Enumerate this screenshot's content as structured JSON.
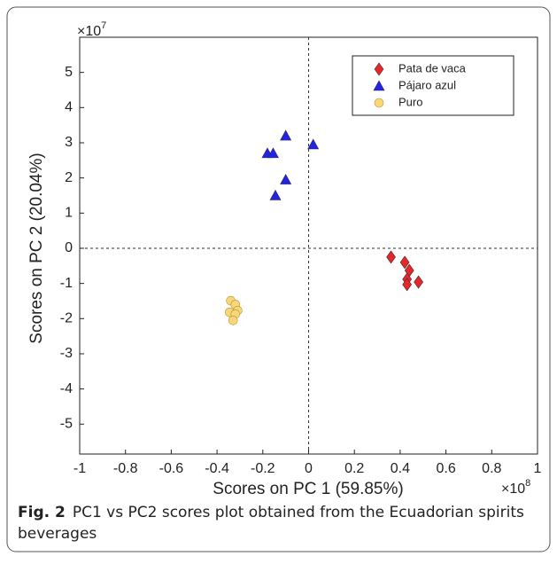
{
  "chart_data": {
    "type": "scatter",
    "xlabel": "Scores on PC 1 (59.85%)",
    "ylabel": "Scores on PC 2 (20.04%)",
    "x_multiplier_base": "×10",
    "x_multiplier_exponent": "8",
    "y_multiplier_base": "×10",
    "y_multiplier_exponent": "7",
    "xlim": [
      -1,
      1
    ],
    "ylim": [
      -5.85,
      6
    ],
    "xticks": [
      -1,
      -0.8,
      -0.6,
      -0.4,
      -0.2,
      0,
      0.2,
      0.4,
      0.6,
      0.8,
      1
    ],
    "yticks": [
      -5,
      -4,
      -3,
      -2,
      -1,
      0,
      1,
      2,
      3,
      4,
      5
    ],
    "legend": "top-right",
    "series": [
      {
        "name": "Pata de vaca",
        "color": "#e8262a",
        "marker": "diamond",
        "x": [
          0.36,
          0.42,
          0.44,
          0.43,
          0.43,
          0.48
        ],
        "y": [
          -0.25,
          -0.4,
          -0.63,
          -0.88,
          -1.03,
          -0.96
        ]
      },
      {
        "name": "Pájaro azul",
        "color": "#2222e8",
        "marker": "triangle",
        "x": [
          -0.1,
          0.02,
          -0.18,
          -0.155,
          -0.1,
          -0.145
        ],
        "y": [
          3.2,
          2.95,
          2.7,
          2.7,
          1.95,
          1.5
        ]
      },
      {
        "name": "Puro",
        "color": "#f7d77a",
        "marker": "circle",
        "x": [
          -0.34,
          -0.32,
          -0.31,
          -0.345,
          -0.32,
          -0.33
        ],
        "y": [
          -1.49,
          -1.6,
          -1.77,
          -1.82,
          -1.87,
          -2.05
        ]
      }
    ]
  },
  "caption": {
    "label": "Fig. 2",
    "text": "PC1 vs PC2 scores plot obtained from the Ecuadorian spirits beverages"
  }
}
